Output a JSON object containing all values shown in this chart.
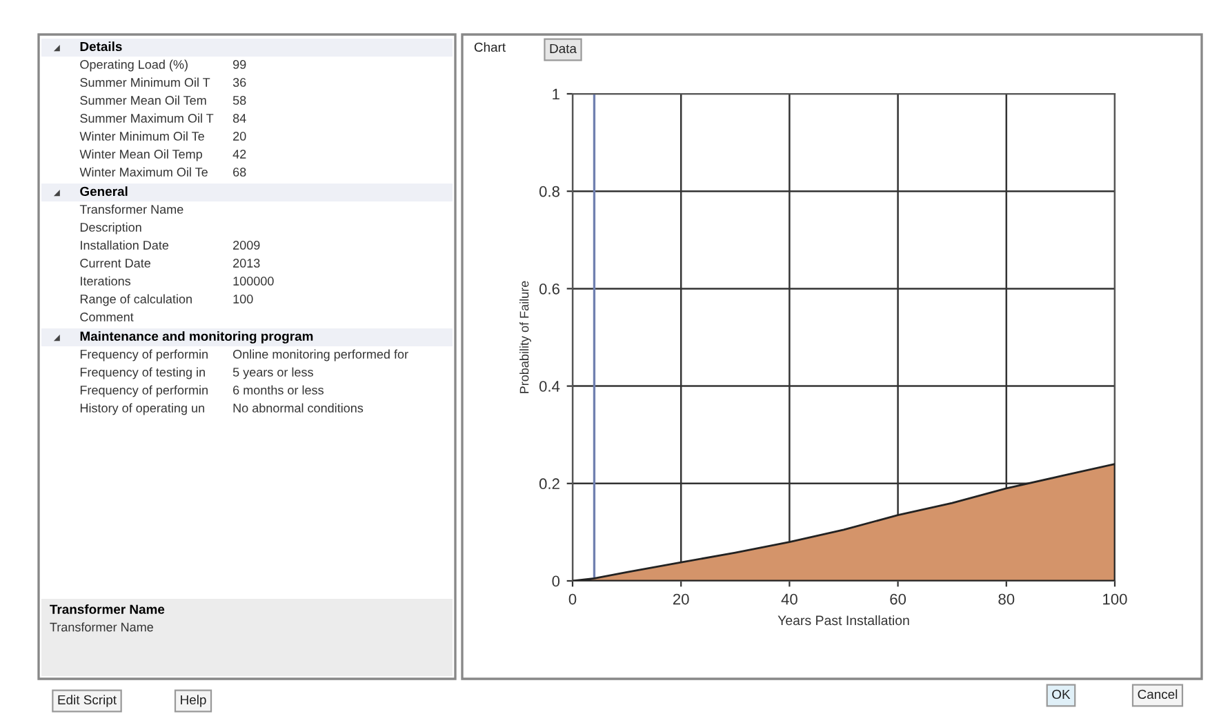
{
  "chart_data": [
    {
      "type": "other",
      "title": "Details",
      "categories": [
        "Operating Load (%)",
        "Summer Minimum Oil T",
        "Summer Mean Oil Tem",
        "Summer Maximum Oil T",
        "Winter Minimum Oil Te",
        "Winter Mean Oil Temp",
        "Winter Maximum Oil Te"
      ],
      "value_labels": [
        "99",
        "36",
        "58",
        "84",
        "20",
        "42",
        "68"
      ]
    },
    {
      "type": "other",
      "title": "General",
      "categories": [
        "Transformer Name",
        "Description",
        "Installation Date",
        "Current Date",
        "Iterations",
        "Range of calculation",
        "Comment"
      ],
      "value_labels": [
        null,
        null,
        "2009",
        "2013",
        "100000",
        "100",
        null
      ]
    },
    {
      "type": "other",
      "title": "Maintenance and monitoring program",
      "categories": [
        "Frequency of performin",
        "Frequency of testing in",
        "Frequency of performin",
        "History of operating un"
      ],
      "value_labels": [
        "Online monitoring performed for",
        "5 years or less",
        "6 months or less",
        "No abnormal conditions"
      ]
    },
    {
      "type": "other",
      "title": "Transformer Name",
      "subtitle": "Transformer Name"
    },
    {
      "type": "area",
      "xlabel": "Years Past Installation",
      "ylabel": "Probability of Failure",
      "x": [
        0,
        4,
        10,
        20,
        30,
        40,
        50,
        60,
        70,
        80,
        90,
        100
      ],
      "series": [
        {
          "color": "#d4946a",
          "values": [
            0,
            0.005,
            0.018,
            0.038,
            0.058,
            0.08,
            0.105,
            0.135,
            0.16,
            0.19,
            0.215,
            0.24
          ]
        }
      ],
      "xlim": [
        0,
        100
      ],
      "ylim": [
        0,
        1
      ],
      "xticks": [
        0,
        20,
        40,
        60,
        80,
        100
      ],
      "yticks": [
        0,
        0.2,
        0.4,
        0.6,
        0.8,
        1
      ],
      "grid": true,
      "ref_lines": [
        {
          "axis": "x",
          "value": 4,
          "color": "#7080b0"
        }
      ],
      "annotations": [
        "Chart",
        "Data",
        "Edit Script",
        "Help",
        "OK",
        "Cancel"
      ]
    }
  ]
}
